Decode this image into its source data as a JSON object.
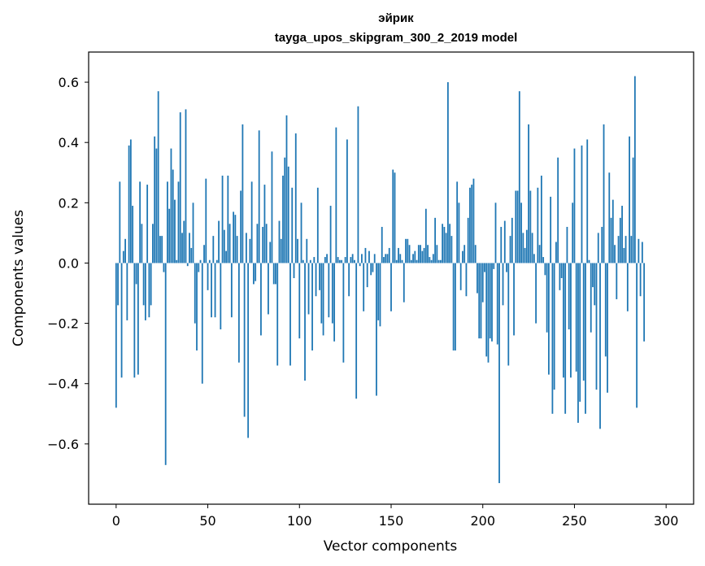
{
  "chart_data": {
    "type": "bar",
    "title": "эйрик",
    "subtitle": "tayga_upos_skipgram_300_2_2019 model",
    "xlabel": "Vector components",
    "ylabel": "Components values",
    "xlim": [
      -15,
      315
    ],
    "ylim": [
      -0.8,
      0.7
    ],
    "x_ticks": [
      0,
      50,
      100,
      150,
      200,
      250,
      300
    ],
    "x_tick_labels": [
      "0",
      "50",
      "100",
      "150",
      "200",
      "250",
      "300"
    ],
    "y_ticks": [
      -0.6,
      -0.4,
      -0.2,
      0.0,
      0.2,
      0.4,
      0.6
    ],
    "y_tick_labels": [
      "−0.6",
      "−0.4",
      "−0.2",
      "0.0",
      "0.2",
      "0.4",
      "0.6"
    ],
    "bar_color": "#1f77b4",
    "values": [
      -0.48,
      -0.14,
      0.27,
      -0.38,
      0.04,
      0.08,
      -0.19,
      0.39,
      0.41,
      0.19,
      -0.38,
      -0.07,
      -0.37,
      0.27,
      0.13,
      -0.14,
      -0.19,
      0.26,
      -0.18,
      -0.14,
      0.13,
      0.42,
      0.38,
      0.57,
      0.09,
      0.09,
      -0.03,
      -0.67,
      0.27,
      0.18,
      0.38,
      0.31,
      0.21,
      0.01,
      0.27,
      0.5,
      0.1,
      0.14,
      0.51,
      -0.01,
      0.1,
      0.05,
      0.2,
      -0.2,
      -0.29,
      -0.03,
      0.01,
      -0.4,
      0.06,
      0.28,
      -0.09,
      0.01,
      -0.18,
      0.09,
      -0.18,
      0.01,
      0.14,
      -0.22,
      0.29,
      0.11,
      0.04,
      0.29,
      0.13,
      -0.18,
      0.17,
      0.16,
      0.09,
      -0.33,
      0.24,
      0.46,
      -0.51,
      0.1,
      -0.58,
      0.08,
      0.27,
      -0.07,
      -0.06,
      0.13,
      0.44,
      -0.24,
      0.12,
      0.26,
      0.13,
      -0.17,
      0.07,
      0.37,
      -0.07,
      -0.07,
      -0.34,
      0.14,
      0.08,
      0.29,
      0.35,
      0.49,
      0.32,
      -0.34,
      0.25,
      -0.05,
      0.43,
      0.08,
      -0.25,
      0.2,
      0.01,
      -0.39,
      0.08,
      -0.17,
      0.01,
      -0.29,
      0.02,
      -0.11,
      0.25,
      -0.09,
      -0.2,
      -0.24,
      0.02,
      0.03,
      -0.18,
      0.19,
      -0.2,
      -0.26,
      0.45,
      0.02,
      0.01,
      0.01,
      -0.33,
      0.02,
      0.41,
      -0.11,
      0.02,
      0.03,
      0.01,
      -0.45,
      0.52,
      -0.01,
      0.03,
      -0.16,
      0.05,
      -0.08,
      0.04,
      -0.04,
      -0.03,
      0.03,
      -0.44,
      -0.19,
      -0.21,
      0.12,
      0.02,
      0.03,
      0.03,
      0.05,
      -0.16,
      0.31,
      0.3,
      0.01,
      0.05,
      0.03,
      0.01,
      -0.13,
      0.08,
      0.08,
      0.06,
      0.01,
      0.03,
      0.04,
      0.01,
      0.06,
      0.06,
      0.04,
      0.05,
      0.18,
      0.06,
      0.02,
      0.01,
      0.03,
      0.15,
      0.06,
      0.01,
      0.01,
      0.13,
      0.12,
      0.1,
      0.6,
      0.13,
      0.09,
      -0.29,
      -0.29,
      0.27,
      0.2,
      -0.09,
      0.04,
      0.06,
      -0.11,
      0.15,
      0.25,
      0.26,
      0.28,
      0.06,
      -0.1,
      -0.25,
      -0.25,
      -0.13,
      -0.03,
      -0.31,
      -0.33,
      -0.25,
      -0.26,
      -0.02,
      0.2,
      -0.27,
      -0.73,
      0.12,
      -0.14,
      0.14,
      -0.03,
      -0.34,
      0.09,
      0.15,
      -0.24,
      0.24,
      0.24,
      0.57,
      0.2,
      0.1,
      0.05,
      0.11,
      0.46,
      0.24,
      0.1,
      0.03,
      -0.2,
      0.25,
      0.06,
      0.29,
      0.02,
      -0.04,
      -0.23,
      -0.37,
      0.22,
      -0.5,
      -0.42,
      0.07,
      0.35,
      -0.09,
      -0.05,
      -0.38,
      -0.5,
      0.12,
      -0.22,
      -0.38,
      0.2,
      0.38,
      -0.36,
      -0.53,
      -0.46,
      0.39,
      -0.39,
      -0.5,
      0.41,
      0.01,
      -0.23,
      -0.08,
      -0.14,
      -0.42,
      0.1,
      -0.55,
      0.12,
      0.46,
      -0.31,
      -0.43,
      0.3,
      0.15,
      0.21,
      0.06,
      -0.12,
      0.09,
      0.15,
      0.19,
      0.05,
      0.09,
      -0.16,
      0.42,
      0.09,
      0.35,
      0.62,
      -0.48,
      0.08,
      -0.11,
      0.07,
      -0.26
    ]
  }
}
